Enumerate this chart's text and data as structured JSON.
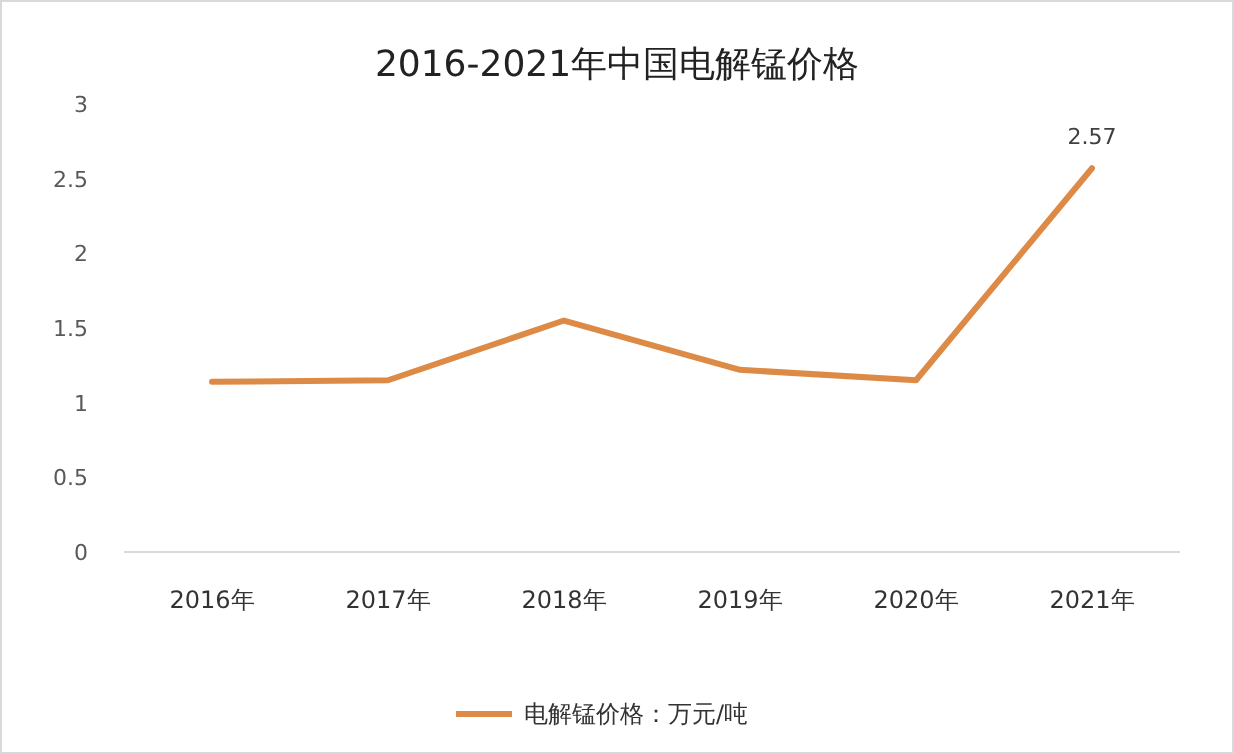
{
  "chart_data": {
    "type": "line",
    "title": "2016-2021年中国电解锰价格",
    "categories": [
      "2016年",
      "2017年",
      "2018年",
      "2019年",
      "2020年",
      "2021年"
    ],
    "series": [
      {
        "name": "电解锰价格：万元/吨",
        "color": "#dd8a47",
        "values": [
          1.14,
          1.15,
          1.55,
          1.22,
          1.15,
          2.57
        ],
        "value_labels": [
          null,
          null,
          null,
          null,
          null,
          "2.57"
        ]
      }
    ],
    "ylim": [
      0,
      3
    ],
    "yticks": [
      0,
      0.5,
      1,
      1.5,
      2,
      2.5,
      3
    ],
    "grid": false,
    "legend": "bottom",
    "marker": "none",
    "line_style": "solid"
  }
}
